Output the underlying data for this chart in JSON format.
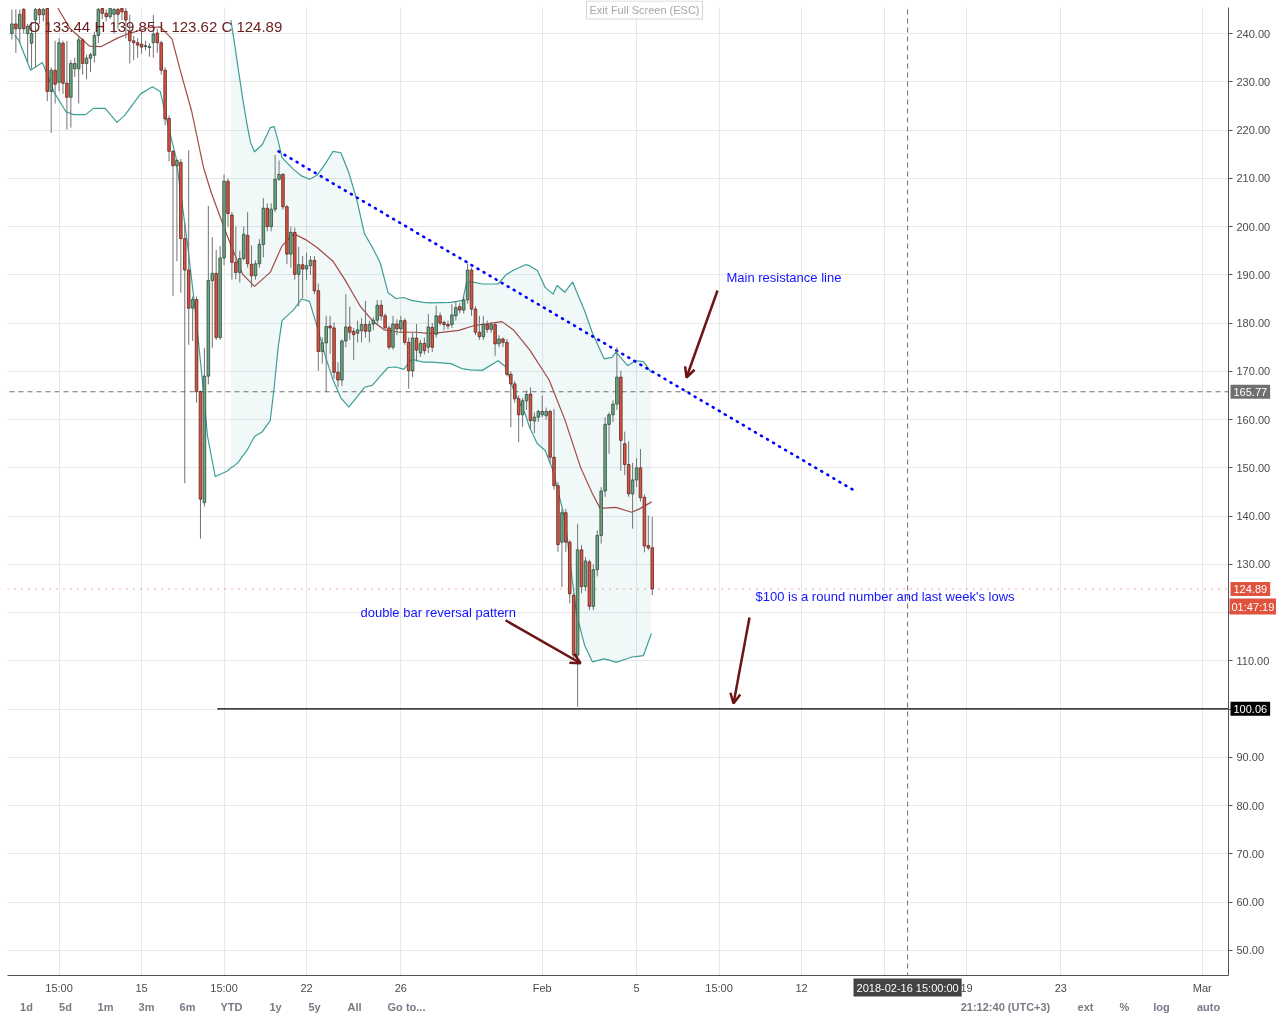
{
  "chart_data": {
    "type": "candlestick",
    "title": "O 133.44 H 139.85 L 123.62 C 124.89",
    "x": [
      "2018-01-09T15:00",
      "2018-01-09T19:00",
      "2018-01-09T23:00",
      "2018-01-10T03:00",
      "2018-01-10T07:00",
      "2018-01-10T11:00",
      "2018-01-10T15:00",
      "2018-01-10T19:00",
      "2018-01-10T23:00",
      "2018-01-11T03:00",
      "2018-01-11T07:00",
      "2018-01-11T11:00",
      "2018-01-11T15:00",
      "2018-01-11T19:00",
      "2018-01-11T23:00",
      "2018-01-12T03:00",
      "2018-01-12T07:00",
      "2018-01-12T11:00",
      "2018-01-12T15:00",
      "2018-01-12T19:00",
      "2018-01-12T23:00",
      "2018-01-13T03:00",
      "2018-01-13T07:00",
      "2018-01-13T11:00",
      "2018-01-13T15:00",
      "2018-01-13T19:00",
      "2018-01-13T23:00",
      "2018-01-14T03:00",
      "2018-01-14T07:00",
      "2018-01-14T11:00",
      "2018-01-14T15:00",
      "2018-01-14T19:00",
      "2018-01-14T23:00",
      "2018-01-15T03:00",
      "2018-01-15T07:00",
      "2018-01-15T11:00",
      "2018-01-15T15:00",
      "2018-01-15T19:00",
      "2018-01-15T23:00",
      "2018-01-16T03:00",
      "2018-01-16T07:00",
      "2018-01-16T11:00",
      "2018-01-16T15:00",
      "2018-01-16T19:00",
      "2018-01-16T23:00",
      "2018-01-17T03:00",
      "2018-01-17T07:00",
      "2018-01-17T11:00",
      "2018-01-17T15:00",
      "2018-01-17T19:00",
      "2018-01-17T23:00",
      "2018-01-18T03:00",
      "2018-01-18T07:00",
      "2018-01-18T11:00",
      "2018-01-18T15:00",
      "2018-01-18T19:00",
      "2018-01-18T23:00",
      "2018-01-19T03:00",
      "2018-01-19T07:00",
      "2018-01-19T11:00",
      "2018-01-19T15:00",
      "2018-01-19T19:00",
      "2018-01-19T23:00",
      "2018-01-20T03:00",
      "2018-01-20T07:00",
      "2018-01-20T11:00",
      "2018-01-20T15:00",
      "2018-01-20T19:00",
      "2018-01-20T23:00",
      "2018-01-21T03:00",
      "2018-01-21T07:00",
      "2018-01-21T11:00",
      "2018-01-21T15:00",
      "2018-01-21T19:00",
      "2018-01-21T23:00",
      "2018-01-22T03:00",
      "2018-01-22T07:00",
      "2018-01-22T11:00",
      "2018-01-22T15:00",
      "2018-01-22T19:00",
      "2018-01-22T23:00",
      "2018-01-23T03:00",
      "2018-01-23T07:00",
      "2018-01-23T11:00",
      "2018-01-23T15:00",
      "2018-01-23T19:00",
      "2018-01-23T23:00",
      "2018-01-24T03:00",
      "2018-01-24T07:00",
      "2018-01-24T11:00",
      "2018-01-24T15:00",
      "2018-01-24T19:00",
      "2018-01-24T23:00",
      "2018-01-25T03:00",
      "2018-01-25T07:00",
      "2018-01-25T11:00",
      "2018-01-25T15:00",
      "2018-01-25T19:00",
      "2018-01-25T23:00",
      "2018-01-26T03:00",
      "2018-01-26T07:00",
      "2018-01-26T11:00",
      "2018-01-26T15:00",
      "2018-01-26T19:00",
      "2018-01-26T23:00",
      "2018-01-27T03:00",
      "2018-01-27T07:00",
      "2018-01-27T11:00",
      "2018-01-27T15:00",
      "2018-01-27T19:00",
      "2018-01-27T23:00",
      "2018-01-28T03:00",
      "2018-01-28T07:00",
      "2018-01-28T11:00",
      "2018-01-28T15:00",
      "2018-01-28T19:00",
      "2018-01-28T23:00",
      "2018-01-29T03:00",
      "2018-01-29T07:00",
      "2018-01-29T11:00",
      "2018-01-29T15:00",
      "2018-01-29T19:00",
      "2018-01-29T23:00",
      "2018-01-30T03:00",
      "2018-01-30T07:00",
      "2018-01-30T11:00",
      "2018-01-30T15:00",
      "2018-01-30T19:00",
      "2018-01-30T23:00",
      "2018-01-31T03:00",
      "2018-01-31T07:00",
      "2018-01-31T11:00",
      "2018-01-31T15:00",
      "2018-01-31T19:00",
      "2018-01-31T23:00",
      "2018-02-01T03:00",
      "2018-02-01T07:00",
      "2018-02-01T11:00",
      "2018-02-01T15:00",
      "2018-02-01T19:00",
      "2018-02-01T23:00",
      "2018-02-02T03:00",
      "2018-02-02T07:00",
      "2018-02-02T11:00",
      "2018-02-02T15:00",
      "2018-02-02T19:00",
      "2018-02-02T23:00",
      "2018-02-03T03:00",
      "2018-02-03T07:00",
      "2018-02-03T11:00",
      "2018-02-03T15:00",
      "2018-02-03T19:00",
      "2018-02-03T23:00",
      "2018-02-04T03:00",
      "2018-02-04T07:00",
      "2018-02-04T11:00",
      "2018-02-04T15:00",
      "2018-02-04T19:00",
      "2018-02-04T23:00",
      "2018-02-05T03:00",
      "2018-02-05T07:00",
      "2018-02-05T11:00",
      "2018-02-05T15:00",
      "2018-02-05T19:00"
    ],
    "ohlc": [
      [
        240,
        245,
        238.8,
        242
      ],
      [
        242,
        245,
        236,
        241
      ],
      [
        241,
        245,
        238,
        244
      ],
      [
        245,
        245.3,
        240,
        241
      ],
      [
        240,
        242,
        234,
        241.5
      ],
      [
        238,
        242.4,
        232.7,
        240
      ],
      [
        242.8,
        245.3,
        233,
        245
      ],
      [
        245,
        245.3,
        242,
        243.9
      ],
      [
        243.9,
        245.3,
        242.5,
        245
      ],
      [
        245.2,
        245.3,
        226,
        228
      ],
      [
        228,
        233,
        219.4,
        232.4
      ],
      [
        232.4,
        238.5,
        225.5,
        229.5
      ],
      [
        229.9,
        239,
        228,
        238.1
      ],
      [
        238,
        238.5,
        227.5,
        229.7
      ],
      [
        229.7,
        238.5,
        220.1,
        226.8
      ],
      [
        226.8,
        234.5,
        220.5,
        233.8
      ],
      [
        232.7,
        235,
        231,
        233.8
      ],
      [
        232.7,
        239.5,
        225.5,
        238.7
      ],
      [
        238.7,
        239,
        231.5,
        233.8
      ],
      [
        233.8,
        235.6,
        230.5,
        234.9
      ],
      [
        234.9,
        236,
        232,
        235.6
      ],
      [
        235.5,
        240.4,
        234,
        239.6
      ],
      [
        239.6,
        245.3,
        238,
        245
      ],
      [
        245.2,
        245.3,
        243,
        244.2
      ],
      [
        244.2,
        245,
        242.5,
        243.5
      ],
      [
        243.5,
        245.3,
        243,
        245.2
      ],
      [
        244,
        245.3,
        240,
        245
      ],
      [
        245,
        245.3,
        241,
        244
      ],
      [
        245.2,
        245.3,
        242.8,
        244.5
      ],
      [
        244.6,
        245.3,
        239,
        242.8
      ],
      [
        240.3,
        243.9,
        233.8,
        238.5
      ],
      [
        238.5,
        239.5,
        234.5,
        238.1
      ],
      [
        238.1,
        239,
        235,
        237.6
      ],
      [
        237.8,
        240.4,
        235.8,
        237.2
      ],
      [
        237.3,
        238.5,
        236.5,
        237.5
      ],
      [
        237.1,
        238,
        235.2,
        237.3
      ],
      [
        238.1,
        243.9,
        235,
        239.9
      ],
      [
        240.1,
        241,
        236,
        238.1
      ],
      [
        238.1,
        238.5,
        231.5,
        232.4
      ],
      [
        232.4,
        233,
        221,
        222.3
      ],
      [
        222.4,
        223,
        213.5,
        215.6
      ],
      [
        215.6,
        215.8,
        185.6,
        212.6
      ],
      [
        212.6,
        214,
        192.8,
        213.7
      ],
      [
        213.3,
        214,
        186.3,
        197.5
      ],
      [
        197.5,
        200.7,
        146.8,
        191
      ],
      [
        191,
        215.8,
        175.5,
        183.1
      ],
      [
        183.1,
        185.5,
        176.3,
        184.9
      ],
      [
        184.9,
        185.5,
        163.5,
        165.8
      ],
      [
        165.8,
        166,
        135.3,
        143.5
      ],
      [
        142.8,
        174.8,
        142,
        169
      ],
      [
        169,
        204.3,
        167.3,
        188.8
      ],
      [
        188.8,
        197.8,
        174.8,
        190.3
      ],
      [
        190.3,
        195.2,
        176.5,
        177
      ],
      [
        177,
        196,
        176.5,
        193.5
      ],
      [
        193.5,
        210.8,
        192,
        209.4
      ],
      [
        209.4,
        210,
        200,
        202.7
      ],
      [
        202.4,
        203,
        189,
        192.6
      ],
      [
        192.6,
        200,
        189.1,
        190.5
      ],
      [
        190.5,
        195,
        188.4,
        193.4
      ],
      [
        193.4,
        200,
        193,
        198.4
      ],
      [
        198.2,
        203,
        191.5,
        192.3
      ],
      [
        192.2,
        196.1,
        187.4,
        189.8
      ],
      [
        189.8,
        193,
        189,
        192.3
      ],
      [
        192.3,
        197.4,
        191.5,
        196.3
      ],
      [
        196.3,
        205.9,
        193.6,
        203.8
      ],
      [
        203.8,
        204.8,
        199,
        200
      ],
      [
        200,
        204.8,
        199,
        203.6
      ],
      [
        203.6,
        214.8,
        203,
        209.8
      ],
      [
        209.8,
        213.7,
        209.5,
        210.8
      ],
      [
        210.8,
        211.1,
        203.5,
        204.1
      ],
      [
        204.1,
        204.5,
        192.2,
        194.3
      ],
      [
        194.3,
        200,
        191.5,
        198.8
      ],
      [
        198.8,
        199.8,
        189,
        190.1
      ],
      [
        190.1,
        195.8,
        183.4,
        192.1
      ],
      [
        192.1,
        193.9,
        185.2,
        191.2
      ],
      [
        191.2,
        194.6,
        189,
        191.9
      ],
      [
        191.9,
        193.9,
        190,
        193
      ],
      [
        193,
        193.9,
        186,
        186.7
      ],
      [
        186.7,
        188.2,
        170.1,
        174.1
      ],
      [
        174.1,
        177,
        171.6,
        175.9
      ],
      [
        175.9,
        181.5,
        165.7,
        179.3
      ],
      [
        179.4,
        181.5,
        173.6,
        179
      ],
      [
        179,
        180.1,
        168.5,
        169.8
      ],
      [
        169.8,
        171.9,
        166.7,
        168.2
      ],
      [
        168.2,
        176.6,
        167,
        176.3
      ],
      [
        176.3,
        186,
        175,
        179.2
      ],
      [
        179.2,
        183.4,
        176.5,
        178.1
      ],
      [
        178.3,
        179,
        172.3,
        177.6
      ],
      [
        177.9,
        180.5,
        176,
        178.6
      ],
      [
        178.4,
        181,
        176,
        179.7
      ],
      [
        179.7,
        184.6,
        177,
        178.3
      ],
      [
        178.3,
        180.5,
        176,
        179.7
      ],
      [
        179.8,
        181.2,
        178.5,
        180.6
      ],
      [
        180.6,
        184.8,
        179.5,
        183.7
      ],
      [
        183.7,
        184.8,
        180.5,
        181.5
      ],
      [
        181.5,
        182,
        178.8,
        179
      ],
      [
        179,
        179.5,
        174.5,
        175
      ],
      [
        175,
        181.5,
        174.5,
        179.8
      ],
      [
        179.8,
        180.8,
        177.5,
        178.8
      ],
      [
        178.8,
        181.5,
        178,
        180.5
      ],
      [
        180.5,
        181,
        175.5,
        176
      ],
      [
        176,
        177,
        166.4,
        170.1
      ],
      [
        170.1,
        178,
        168.8,
        176.9
      ],
      [
        176.9,
        179.8,
        172,
        174.4
      ],
      [
        173.8,
        176.5,
        173,
        175.8
      ],
      [
        175.8,
        177,
        173.5,
        174.3
      ],
      [
        175,
        181.9,
        173.8,
        179.2
      ],
      [
        179.1,
        180,
        174,
        175
      ],
      [
        177.7,
        183.6,
        177,
        181.5
      ],
      [
        181.5,
        182.2,
        179.5,
        180
      ],
      [
        180.1,
        180.5,
        178.5,
        179.7
      ],
      [
        179.7,
        180.5,
        178.7,
        179.4
      ],
      [
        179.7,
        183.9,
        179,
        181.7
      ],
      [
        181.5,
        184.5,
        180.5,
        183.2
      ],
      [
        183.4,
        184.2,
        182,
        182.7
      ],
      [
        182.7,
        185.5,
        182,
        184.8
      ],
      [
        184.8,
        192.3,
        184,
        191
      ],
      [
        191,
        191.5,
        181.5,
        182.9
      ],
      [
        182.9,
        183.5,
        177.5,
        178.1
      ],
      [
        178.1,
        181.5,
        176.5,
        177.2
      ],
      [
        177.2,
        181.5,
        176.5,
        179.7
      ],
      [
        179.7,
        180.5,
        178,
        178.7
      ],
      [
        178.7,
        180.2,
        178,
        179.7
      ],
      [
        179.7,
        180,
        173.2,
        175.7
      ],
      [
        175.7,
        177.5,
        175,
        176.7
      ],
      [
        176.7,
        177,
        175,
        176
      ],
      [
        176,
        176.7,
        169,
        169.4
      ],
      [
        169.4,
        170,
        158.4,
        167.4
      ],
      [
        167.4,
        168,
        163.5,
        164.3
      ],
      [
        164.3,
        165,
        155.3,
        161
      ],
      [
        161,
        164.5,
        158.5,
        163.9
      ],
      [
        163.9,
        166,
        162,
        165.2
      ],
      [
        165.3,
        166.7,
        158,
        159.8
      ],
      [
        159.7,
        161.5,
        157.2,
        160.5
      ],
      [
        160.5,
        162,
        159.5,
        161.7
      ],
      [
        161,
        165,
        160.5,
        161.7
      ],
      [
        160.8,
        162.5,
        160,
        161.7
      ],
      [
        161.7,
        162,
        151,
        152.2
      ],
      [
        152.2,
        162.2,
        145.5,
        146.3
      ],
      [
        146.3,
        147,
        132.6,
        134.1
      ],
      [
        134.6,
        141.5,
        125.3,
        140.7
      ],
      [
        140.7,
        141.5,
        132.6,
        134.6
      ],
      [
        134.6,
        135,
        121.9,
        123.9
      ],
      [
        123.6,
        124,
        110.5,
        111.2
      ],
      [
        111.2,
        138.4,
        100.5,
        133
      ],
      [
        133,
        134,
        124,
        125.4
      ],
      [
        125.4,
        131.5,
        124.5,
        130.7
      ],
      [
        130.5,
        131,
        120.5,
        121.3
      ],
      [
        121.3,
        130,
        120.5,
        128.9
      ],
      [
        128.9,
        137,
        127.5,
        136
      ],
      [
        136,
        146,
        134.3,
        145.2
      ],
      [
        145.2,
        160.5,
        144,
        159
      ],
      [
        159,
        161.5,
        152.9,
        161
      ],
      [
        161,
        164,
        159.5,
        163.2
      ],
      [
        163.2,
        175,
        162,
        168.8
      ],
      [
        168.8,
        170.1,
        149.4,
        155.7
      ],
      [
        155,
        157.5,
        148.5,
        150.7
      ],
      [
        150.7,
        155.5,
        144,
        144.6
      ],
      [
        144.6,
        151,
        137.4,
        147.5
      ],
      [
        147.5,
        152,
        146,
        150
      ],
      [
        150,
        153.9,
        143,
        143.8
      ],
      [
        143.9,
        144.5,
        132.5,
        133.8
      ],
      [
        133.9,
        140.1,
        133,
        133.4
      ],
      [
        133.44,
        139.85,
        123.62,
        124.89
      ]
    ],
    "colors": [
      "#6ba583",
      "#d75442",
      "#6ba583",
      "#d75442",
      "#6ba583",
      "#6ba583",
      "#6ba583",
      "#d75442",
      "#6ba583",
      "#d75442",
      "#6ba583",
      "#d75442",
      "#6ba583",
      "#d75442",
      "#d75442",
      "#6ba583",
      "#6ba583",
      "#6ba583",
      "#d75442",
      "#6ba583",
      "#6ba583",
      "#6ba583",
      "#6ba583",
      "#d75442",
      "#d75442",
      "#6ba583",
      "#6ba583",
      "#d75442",
      "#d75442",
      "#d75442",
      "#d75442",
      "#d75442",
      "#d75442",
      "#d75442",
      "#6ba583",
      "#6ba583",
      "#6ba583",
      "#d75442",
      "#d75442",
      "#d75442",
      "#d75442",
      "#d75442",
      "#6ba583",
      "#d75442",
      "#d75442",
      "#d75442",
      "#6ba583",
      "#d75442",
      "#d75442",
      "#6ba583",
      "#6ba583",
      "#6ba583",
      "#d75442",
      "#6ba583",
      "#6ba583",
      "#d75442",
      "#d75442",
      "#d75442",
      "#6ba583",
      "#6ba583",
      "#d75442",
      "#d75442",
      "#6ba583",
      "#6ba583",
      "#6ba583",
      "#d75442",
      "#6ba583",
      "#6ba583",
      "#6ba583",
      "#d75442",
      "#d75442",
      "#6ba583",
      "#d75442",
      "#6ba583",
      "#d75442",
      "#6ba583",
      "#6ba583",
      "#d75442",
      "#d75442",
      "#6ba583",
      "#6ba583",
      "#d75442",
      "#d75442",
      "#d75442",
      "#6ba583",
      "#6ba583",
      "#d75442",
      "#d75442",
      "#6ba583",
      "#6ba583",
      "#d75442",
      "#6ba583",
      "#6ba583",
      "#6ba583",
      "#d75442",
      "#d75442",
      "#d75442",
      "#6ba583",
      "#d75442",
      "#6ba583",
      "#d75442",
      "#d75442",
      "#6ba583",
      "#d75442",
      "#6ba583",
      "#d75442",
      "#6ba583",
      "#d75442",
      "#6ba583",
      "#d75442",
      "#d75442",
      "#d75442",
      "#6ba583",
      "#6ba583",
      "#d75442",
      "#6ba583",
      "#6ba583",
      "#d75442",
      "#d75442",
      "#d75442",
      "#6ba583",
      "#d75442",
      "#6ba583",
      "#d75442",
      "#6ba583",
      "#d75442",
      "#d75442",
      "#d75442",
      "#d75442",
      "#d75442",
      "#6ba583",
      "#6ba583",
      "#d75442",
      "#6ba583",
      "#6ba583",
      "#6ba583",
      "#6ba583",
      "#d75442",
      "#d75442",
      "#d75442",
      "#6ba583",
      "#d75442",
      "#d75442",
      "#d75442",
      "#6ba583",
      "#d75442",
      "#6ba583",
      "#d75442",
      "#6ba583",
      "#6ba583",
      "#6ba583",
      "#6ba583",
      "#6ba583",
      "#6ba583",
      "#6ba583",
      "#d75442",
      "#d75442",
      "#d75442",
      "#6ba583",
      "#6ba583",
      "#d75442",
      "#d75442",
      "#d75442",
      "#d75442"
    ],
    "series": [
      {
        "type": "line",
        "color": "#3e9e98",
        "x": [
          "2018-01-18T22:00",
          "2018-01-19T02:00",
          "2018-01-19T06:00",
          "2018-01-19T10:00",
          "2018-01-19T14:00",
          "2018-01-19T18:00",
          "2018-01-19T22:00",
          "2018-01-20T06:00",
          "2018-01-20T14:00",
          "2018-01-20T18:00",
          "2018-01-20T22:00",
          "2018-01-21T02:00",
          "2018-01-21T14:00",
          "2018-01-21T22:00",
          "2018-01-22T06:00",
          "2018-01-22T14:00",
          "2018-01-22T22:00",
          "2018-01-23T06:00",
          "2018-01-23T14:00",
          "2018-01-23T22:00",
          "2018-01-24T06:00",
          "2018-01-24T14:00",
          "2018-01-24T22:00",
          "2018-01-25T06:00",
          "2018-01-25T14:00",
          "2018-01-25T22:00",
          "2018-01-26T06:00",
          "2018-01-26T14:00",
          "2018-01-27T02:00",
          "2018-01-27T10:00",
          "2018-01-28T06:00",
          "2018-01-28T18:00",
          "2018-01-28T22:00",
          "2018-01-29T02:00",
          "2018-01-29T14:00",
          "2018-01-30T06:00",
          "2018-01-30T14:00",
          "2018-01-30T22:00",
          "2018-01-31T10:00",
          "2018-01-31T14:00",
          "2018-01-31T22:00",
          "2018-02-01T06:00",
          "2018-02-01T14:00",
          "2018-02-01T18:00",
          "2018-02-02T02:00",
          "2018-02-02T06:00",
          "2018-02-02T10:00",
          "2018-02-02T14:00",
          "2018-02-02T22:00",
          "2018-02-03T06:00",
          "2018-02-03T18:00",
          "2018-02-04T02:00",
          "2018-02-04T06:00",
          "2018-02-04T18:00",
          "2018-02-04T22:00",
          "2018-02-05T02:00",
          "2018-02-05T10:00",
          "2018-02-05T18:00"
        ],
        "values": [
          242.7,
          237.5,
          231.9,
          226.5,
          221.6,
          217.4,
          215.5,
          217,
          220.5,
          220.7,
          217.8,
          214.3,
          211.8,
          210.5,
          209.8,
          210.7,
          213,
          215.6,
          215.3,
          211.2,
          205.7,
          198.5,
          195.7,
          192.5,
          186.3,
          185.1,
          185.3,
          184.7,
          184.3,
          184.2,
          184.3,
          184.7,
          188.5,
          188.6,
          188.1,
          188.1,
          190,
          191,
          192.1,
          191.9,
          190.9,
          187.4,
          186,
          187.8,
          186.4,
          187.5,
          188.5,
          186.5,
          182.6,
          178,
          172.6,
          172.9,
          174,
          171.2,
          171.7,
          172.2,
          172,
          169.8
        ]
      },
      {
        "type": "line",
        "color": "#3e9e98",
        "x": [
          "2018-01-09T18:00",
          "2018-01-09T22:00",
          "2018-01-10T10:00",
          "2018-01-10T22:00",
          "2018-01-11T10:00",
          "2018-01-11T22:00",
          "2018-01-12T06:00",
          "2018-01-12T18:00",
          "2018-01-13T02:00",
          "2018-01-13T14:00",
          "2018-01-14T02:00",
          "2018-01-14T10:00",
          "2018-01-15T02:00",
          "2018-01-15T14:00",
          "2018-01-15T22:00",
          "2018-01-16T06:00",
          "2018-01-16T14:00",
          "2018-01-17T02:00",
          "2018-01-17T10:00",
          "2018-01-17T18:00",
          "2018-01-17T22:00",
          "2018-01-18T06:00",
          "2018-01-18T18:00",
          "2018-01-18T22:00",
          "2018-01-19T02:00",
          "2018-01-19T06:00",
          "2018-01-19T10:00",
          "2018-01-19T14:00",
          "2018-01-19T18:00",
          "2018-01-19T22:00",
          "2018-01-20T06:00",
          "2018-01-20T14:00",
          "2018-01-20T18:00",
          "2018-01-20T22:00",
          "2018-01-21T02:00",
          "2018-01-21T14:00",
          "2018-01-21T22:00",
          "2018-01-22T06:00",
          "2018-01-22T14:00",
          "2018-01-22T22:00",
          "2018-01-23T06:00",
          "2018-01-23T14:00",
          "2018-01-23T22:00",
          "2018-01-24T06:00",
          "2018-01-24T14:00",
          "2018-01-24T22:00",
          "2018-01-25T06:00",
          "2018-01-25T14:00",
          "2018-01-25T22:00",
          "2018-01-26T06:00",
          "2018-01-26T14:00",
          "2018-01-27T02:00",
          "2018-01-27T10:00",
          "2018-01-28T06:00",
          "2018-01-28T18:00",
          "2018-01-28T22:00",
          "2018-01-29T02:00",
          "2018-01-29T14:00",
          "2018-01-30T06:00",
          "2018-01-30T14:00",
          "2018-01-30T22:00",
          "2018-01-31T10:00",
          "2018-01-31T14:00",
          "2018-01-31T22:00",
          "2018-02-01T06:00",
          "2018-02-01T14:00",
          "2018-02-01T18:00",
          "2018-02-02T02:00",
          "2018-02-02T10:00",
          "2018-02-02T14:00",
          "2018-02-02T22:00",
          "2018-02-03T06:00",
          "2018-02-03T18:00",
          "2018-02-04T02:00",
          "2018-02-04T06:00",
          "2018-02-04T18:00",
          "2018-02-04T22:00",
          "2018-02-05T02:00",
          "2018-02-05T10:00",
          "2018-02-05T18:00"
        ],
        "values": [
          239.6,
          238.6,
          232.4,
          234,
          227.8,
          223.8,
          223.2,
          223.2,
          224.5,
          224.5,
          221.6,
          223.1,
          227.5,
          229,
          228,
          220.9,
          214.4,
          196,
          182,
          166,
          156.8,
          148.2,
          149.3,
          150,
          150.5,
          151.3,
          152.5,
          153.5,
          155,
          156.5,
          157.5,
          159.8,
          166.6,
          174.8,
          180.5,
          182.8,
          185,
          184.5,
          179.1,
          173.2,
          168.2,
          164.5,
          162.6,
          164.6,
          166.7,
          167.1,
          169,
          170.8,
          170.9,
          170.4,
          172.5,
          171.9,
          171.9,
          171.6,
          170.5,
          170.4,
          170.3,
          170.2,
          172.2,
          170.9,
          166,
          161,
          158.4,
          155,
          153.6,
          149.4,
          146,
          139.5,
          126.1,
          119.6,
          113.3,
          109.8,
          110.4,
          110,
          109.7,
          110.5,
          110.8,
          110.9,
          111.1,
          115.6
        ],
        "lower": [
          null,
          null,
          null,
          null,
          null,
          null,
          null,
          null,
          null,
          null,
          null,
          null,
          null,
          null,
          null,
          null,
          null,
          null,
          null,
          null,
          null,
          null,
          null,
          150,
          150.5,
          151.3,
          152.5,
          153.5,
          155,
          156.5,
          157.5,
          159.8,
          166.6,
          174.8,
          180.5,
          182.8,
          185,
          184.5,
          179.1,
          173.2,
          168.2,
          164.5,
          162.6,
          164.6,
          166.7,
          167.1,
          169,
          170.8,
          170.9,
          170.4,
          172.5,
          171.9,
          171.9,
          171.6,
          170.5,
          170.4,
          170.3,
          170.2,
          172.2,
          170.9,
          166,
          161,
          158.4,
          155,
          153.6,
          149.4,
          146,
          139.5,
          126.1,
          119.6,
          113.3,
          109.8,
          110.4,
          110,
          109.7,
          110.5,
          110.8,
          110.9,
          111.1,
          115.6
        ],
        "upper": [
          null,
          null,
          null,
          null,
          null,
          null,
          null,
          null,
          null,
          null,
          null,
          null,
          null,
          null,
          null,
          null,
          null,
          null,
          null,
          null,
          null,
          null,
          null,
          242.7,
          237.5,
          231.9,
          226.5,
          221.6,
          217.4,
          215.5,
          217,
          220.5,
          220.7,
          217.8,
          214.3,
          211.8,
          210.5,
          209.8,
          210.7,
          213,
          215.6,
          215.3,
          211.2,
          205.7,
          198.5,
          195.7,
          192.5,
          186.3,
          185.1,
          185.3,
          184.7,
          184.3,
          184.2,
          184.3,
          184.7,
          188.5,
          188.6,
          188.1,
          188.1,
          190,
          191,
          192.1,
          191.9,
          190.9,
          187.4,
          186,
          187.8,
          186.4,
          188.5,
          186.5,
          182.6,
          178,
          172.6,
          172.9,
          174,
          171.2,
          171.7,
          172.2,
          172,
          169.8
        ]
      },
      {
        "type": "line",
        "color": "#a04a45",
        "x": [
          "2018-01-11T14:00",
          "2018-01-12T02:00",
          "2018-01-12T22:00",
          "2018-01-13T10:00",
          "2018-01-14T02:00",
          "2018-01-14T14:00",
          "2018-01-15T10:00",
          "2018-01-15T22:00",
          "2018-01-16T10:00",
          "2018-01-16T18:00",
          "2018-01-17T06:00",
          "2018-01-17T18:00",
          "2018-01-18T02:00",
          "2018-01-18T18:00",
          "2018-01-19T10:00",
          "2018-01-19T22:00",
          "2018-01-20T14:00",
          "2018-01-21T02:00",
          "2018-01-21T14:00",
          "2018-01-22T02:00",
          "2018-01-22T14:00",
          "2018-01-23T06:00",
          "2018-01-23T18:00",
          "2018-01-24T10:00",
          "2018-01-24T22:00",
          "2018-01-25T10:00",
          "2018-01-26T02:00",
          "2018-01-26T18:00",
          "2018-01-27T10:00",
          "2018-01-28T14:00",
          "2018-01-29T06:00",
          "2018-01-30T10:00",
          "2018-01-30T22:00",
          "2018-01-31T14:00",
          "2018-02-01T10:00",
          "2018-02-02T02:00",
          "2018-02-02T18:00",
          "2018-02-03T06:00",
          "2018-02-03T14:00",
          "2018-02-04T06:00",
          "2018-02-04T22:00",
          "2018-02-05T06:00",
          "2018-02-05T18:00"
        ],
        "values": [
          245.2,
          241.1,
          237.4,
          237.3,
          239,
          240,
          241.2,
          241.4,
          238.9,
          232.7,
          223.9,
          212.3,
          207,
          198.2,
          190.1,
          187.6,
          190.5,
          196,
          198.5,
          197.3,
          195.6,
          192.8,
          189,
          183.4,
          180.5,
          178.6,
          178.1,
          178.1,
          177.8,
          178.5,
          179.5,
          180.3,
          178.5,
          174.5,
          168.2,
          160,
          150.1,
          144.7,
          141.6,
          141.8,
          140.8,
          141.5,
          142.9
        ]
      },
      {
        "type": "line",
        "color": "#0000ff",
        "line_style": "dotted",
        "x": [
          "2018-01-20T22:30",
          "2018-02-14T07:00"
        ],
        "values": [
          215.6,
          145.5
        ]
      },
      {
        "type": "line",
        "color": "#000000",
        "x": [
          "2018-01-18T08:30",
          "2018-03-02T05:45"
        ],
        "values": [
          100.06,
          100.06
        ]
      }
    ],
    "xlim": [
      "2018-01-09T10:30",
      "2018-03-02T05:45"
    ],
    "ylim": [
      44.8,
      245.4
    ],
    "xticks": [
      {
        "value": "2018-01-11T15:00",
        "label": "15:00"
      },
      {
        "value": "2018-01-15T03:00",
        "label": "15"
      },
      {
        "value": "2018-01-18T15:00",
        "label": "15:00"
      },
      {
        "value": "2018-01-22T03:00",
        "label": "22"
      },
      {
        "value": "2018-01-26T03:00",
        "label": "26"
      },
      {
        "value": "2018-02-01T03:00",
        "label": "Feb"
      },
      {
        "value": "2018-02-05T03:00",
        "label": "5"
      },
      {
        "value": "2018-02-08T15:00",
        "label": "15:00"
      },
      {
        "value": "2018-02-12T03:00",
        "label": "12"
      },
      {
        "value": "2018-02-15T15:00",
        "label": null
      },
      {
        "value": "2018-02-19T03:00",
        "label": "19"
      },
      {
        "value": "2018-02-23T03:00",
        "label": "23"
      },
      {
        "value": "2018-03-01T03:00",
        "label": "Mar"
      }
    ],
    "yticks": [
      {
        "value": 50,
        "label": "50.00"
      },
      {
        "value": 60,
        "label": "60.00"
      },
      {
        "value": 70,
        "label": "70.00"
      },
      {
        "value": 80,
        "label": "80.00"
      },
      {
        "value": 90,
        "label": "90.00"
      },
      {
        "value": 100,
        "label": null
      },
      {
        "value": 110,
        "label": "110.00"
      },
      {
        "value": 120,
        "label": null
      },
      {
        "value": 130,
        "label": "130.00"
      },
      {
        "value": 140,
        "label": "140.00"
      },
      {
        "value": 150,
        "label": "150.00"
      },
      {
        "value": 160,
        "label": "160.00"
      },
      {
        "value": 170,
        "label": "170.00"
      },
      {
        "value": 180,
        "label": "180.00"
      },
      {
        "value": 190,
        "label": "190.00"
      },
      {
        "value": 200,
        "label": "200.00"
      },
      {
        "value": 210,
        "label": "210.00"
      },
      {
        "value": 220,
        "label": "220.00"
      },
      {
        "value": 230,
        "label": "230.00"
      },
      {
        "value": 240,
        "label": "240.00"
      }
    ],
    "grid": true,
    "ref_lines": [
      {
        "axis": "y",
        "value": 165.77,
        "label": "165.77",
        "color": "#707070",
        "line_style": "dashed"
      },
      {
        "axis": "y",
        "value": 124.89,
        "label": "124.89",
        "color": "#e0533f",
        "line_style": "dotted"
      },
      {
        "axis": "x",
        "value": "2018-02-16T15:00",
        "label": "2018-02-16 15:00:00",
        "color": "#707070",
        "line_style": "dashed"
      }
    ],
    "annotations": [
      "Main resistance line",
      "$100 is a round number and last week's lows",
      {
        "text": "double bar reversal pattern",
        "x": "2018-02-02T18:00",
        "y": 109.5
      },
      {
        "text": "100.06",
        "x": "2018-03-02T05:45",
        "y": 100.06
      },
      "01:47:19",
      "Exit Full Screen (ESC)",
      "1d",
      "5d",
      "1m",
      "3m",
      "6m",
      "YTD",
      "1y",
      "5y",
      "All",
      "Go to...",
      "21:12:40 (UTC+3)",
      "ext",
      "%",
      "log",
      "auto"
    ]
  }
}
